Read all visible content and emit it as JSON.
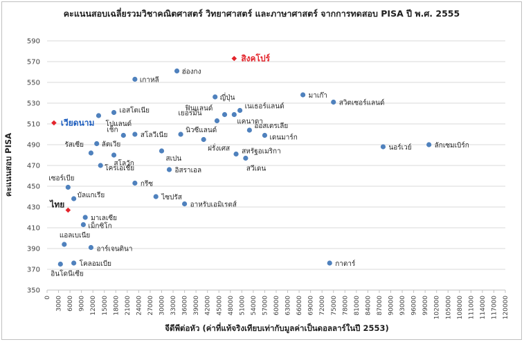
{
  "chart_data": {
    "type": "scatter",
    "title": "คะแนนสอบเฉลี่ยรวมวิชาคณิตศาสตร์ วิทยาศาสตร์ และภาษาศาสตร์ จากการทดสอบ PISA ปี พ.ศ. 2555",
    "xlabel": "จีดีพีต่อหัว (ค่าที่แท้จริงเทียบเท่ากับมูลค่าเป็นดอลลาร์ในปี 2553)",
    "ylabel": "คะแนนสอบ PISA",
    "xlim": [
      0,
      120000
    ],
    "ylim": [
      350,
      590
    ],
    "x_ticks": [
      "0",
      "3000",
      "6000",
      "9000",
      "12000",
      "15000",
      "18000",
      "21000",
      "24000",
      "27000",
      "30000",
      "33000",
      "36000",
      "39000",
      "42000",
      "45000",
      "48000",
      "51000",
      "54000",
      "57000",
      "60000",
      "63000",
      "66000",
      "69000",
      "72000",
      "75000",
      "78000",
      "81000",
      "84000",
      "87000",
      "90000",
      "93000",
      "96000",
      "99000",
      "102000",
      "105000",
      "108000",
      "111000",
      "114000",
      "117000",
      "120000"
    ],
    "y_ticks": [
      "350",
      "370",
      "390",
      "410",
      "430",
      "450",
      "470",
      "490",
      "510",
      "530",
      "550",
      "570",
      "590"
    ],
    "grid": "horizontal",
    "colors": {
      "points": "#4f81bd",
      "highlight": "#e3242b",
      "highlight_label_vietnam": "#1f5fbf",
      "highlight_label_singapore": "#e3242b",
      "highlight_label_thailand": "#1f1f1f"
    },
    "points": [
      {
        "label": "ฮ่องกง",
        "x": 34000,
        "y": 561
      },
      {
        "label": "เกาหลี",
        "x": 23000,
        "y": 553
      },
      {
        "label": "ญี่ปุ่น",
        "x": 44000,
        "y": 536
      },
      {
        "label": "มาเก๊า",
        "x": 67000,
        "y": 538
      },
      {
        "label": "สวิตเซอร์แลนด์",
        "x": 75000,
        "y": 531
      },
      {
        "label": "ฟินแลนด์",
        "x": 46500,
        "y": 519
      },
      {
        "label": "เนเธอร์แลนด์",
        "x": 50500,
        "y": 523
      },
      {
        "label": "เยอรมัน",
        "x": 44500,
        "y": 513
      },
      {
        "label": "แคนาดา",
        "x": 49000,
        "y": 519
      },
      {
        "label": "เอสโตเนีย",
        "x": 17500,
        "y": 521
      },
      {
        "label": "โปแลนด์",
        "x": 13500,
        "y": 518
      },
      {
        "label": "ออสเตรเลีย",
        "x": 53000,
        "y": 504
      },
      {
        "label": "เดนมาร์ก",
        "x": 57000,
        "y": 499
      },
      {
        "label": "เช็ก",
        "x": 20000,
        "y": 499
      },
      {
        "label": "สโลวีเนีย",
        "x": 23000,
        "y": 500
      },
      {
        "label": "นิวซีแลนด์",
        "x": 35000,
        "y": 500
      },
      {
        "label": "ฝรั่งเศส",
        "x": 41000,
        "y": 495
      },
      {
        "label": "ลัตเวีย",
        "x": 13000,
        "y": 491
      },
      {
        "label": "รัสเซีย",
        "x": 11500,
        "y": 482
      },
      {
        "label": "สโลวัก",
        "x": 17500,
        "y": 480
      },
      {
        "label": "สเปน",
        "x": 30000,
        "y": 484
      },
      {
        "label": "สหรัฐอเมริกา",
        "x": 49500,
        "y": 481
      },
      {
        "label": "สวีเดน",
        "x": 52000,
        "y": 477
      },
      {
        "label": "นอร์เวย์",
        "x": 88000,
        "y": 488
      },
      {
        "label": "ลักเซมเบิร์ก",
        "x": 100000,
        "y": 490
      },
      {
        "label": "โครเอเชีย",
        "x": 14000,
        "y": 470
      },
      {
        "label": "อิสราเอล",
        "x": 32000,
        "y": 466
      },
      {
        "label": "กรีซ",
        "x": 23000,
        "y": 453
      },
      {
        "label": "เซอร์เบีย",
        "x": 5500,
        "y": 449
      },
      {
        "label": "บัลแกเรีย",
        "x": 7000,
        "y": 438
      },
      {
        "label": "ไซปรัส",
        "x": 28500,
        "y": 440
      },
      {
        "label": "อาหรับเอมิเรตส์",
        "x": 36000,
        "y": 433
      },
      {
        "label": "มาเลเซีย",
        "x": 10000,
        "y": 420
      },
      {
        "label": "เม็กซิโก",
        "x": 9500,
        "y": 413
      },
      {
        "label": "แอลเบเนีย",
        "x": 4500,
        "y": 394
      },
      {
        "label": "อาร์เจนตินา",
        "x": 11500,
        "y": 391
      },
      {
        "label": "อินโดนีเซีย",
        "x": 3500,
        "y": 375
      },
      {
        "label": "โคลอมเบีย",
        "x": 7000,
        "y": 376
      },
      {
        "label": "กาตาร์",
        "x": 74000,
        "y": 376
      }
    ],
    "highlights": [
      {
        "label": "สิงคโปร์",
        "x": 49000,
        "y": 573
      },
      {
        "label": "เวียดนาม",
        "x": 1800,
        "y": 511
      },
      {
        "label": "ไทย",
        "x": 5500,
        "y": 427
      }
    ]
  }
}
